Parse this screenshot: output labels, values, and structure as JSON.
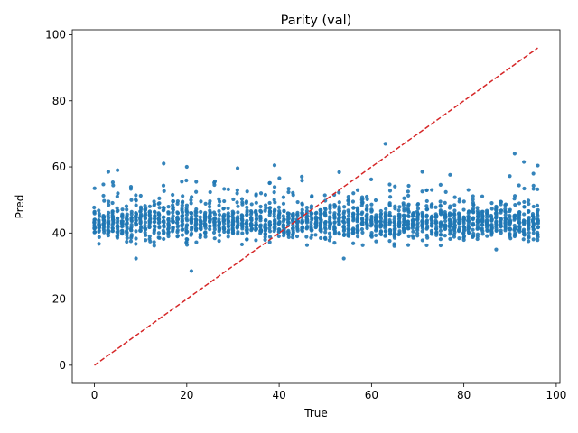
{
  "chart_data": {
    "type": "scatter",
    "title": "Parity (val)",
    "xlabel": "True",
    "ylabel": "Pred",
    "xlim": [
      -4.8,
      100.8
    ],
    "ylim": [
      -5.5,
      101.5
    ],
    "xticks": [
      0,
      20,
      40,
      60,
      80,
      100
    ],
    "yticks": [
      0,
      20,
      40,
      60,
      80,
      100
    ],
    "grid": false,
    "legend": "none",
    "marker_color": "#1f77b4",
    "reference_line": {
      "x": [
        0,
        96
      ],
      "y": [
        0,
        96
      ],
      "color": "#d62728",
      "style": "dashed"
    },
    "points_summary": {
      "x_range": [
        0,
        96
      ],
      "typical_band": [
        38,
        48
      ],
      "center": 43,
      "min": 28.5,
      "max": 67
    },
    "outliers": [
      {
        "x": 21,
        "y": 28.5
      },
      {
        "x": 9,
        "y": 32.3
      },
      {
        "x": 54,
        "y": 32.3
      },
      {
        "x": 63,
        "y": 67
      },
      {
        "x": 91,
        "y": 64
      },
      {
        "x": 15,
        "y": 61
      },
      {
        "x": 20,
        "y": 60
      },
      {
        "x": 39,
        "y": 60.5
      },
      {
        "x": 31,
        "y": 59.6
      },
      {
        "x": 96,
        "y": 60.4
      },
      {
        "x": 5,
        "y": 59
      },
      {
        "x": 3,
        "y": 58.5
      },
      {
        "x": 93,
        "y": 61.5
      },
      {
        "x": 53,
        "y": 58.4
      },
      {
        "x": 71,
        "y": 58.5
      },
      {
        "x": 87,
        "y": 35
      }
    ]
  }
}
